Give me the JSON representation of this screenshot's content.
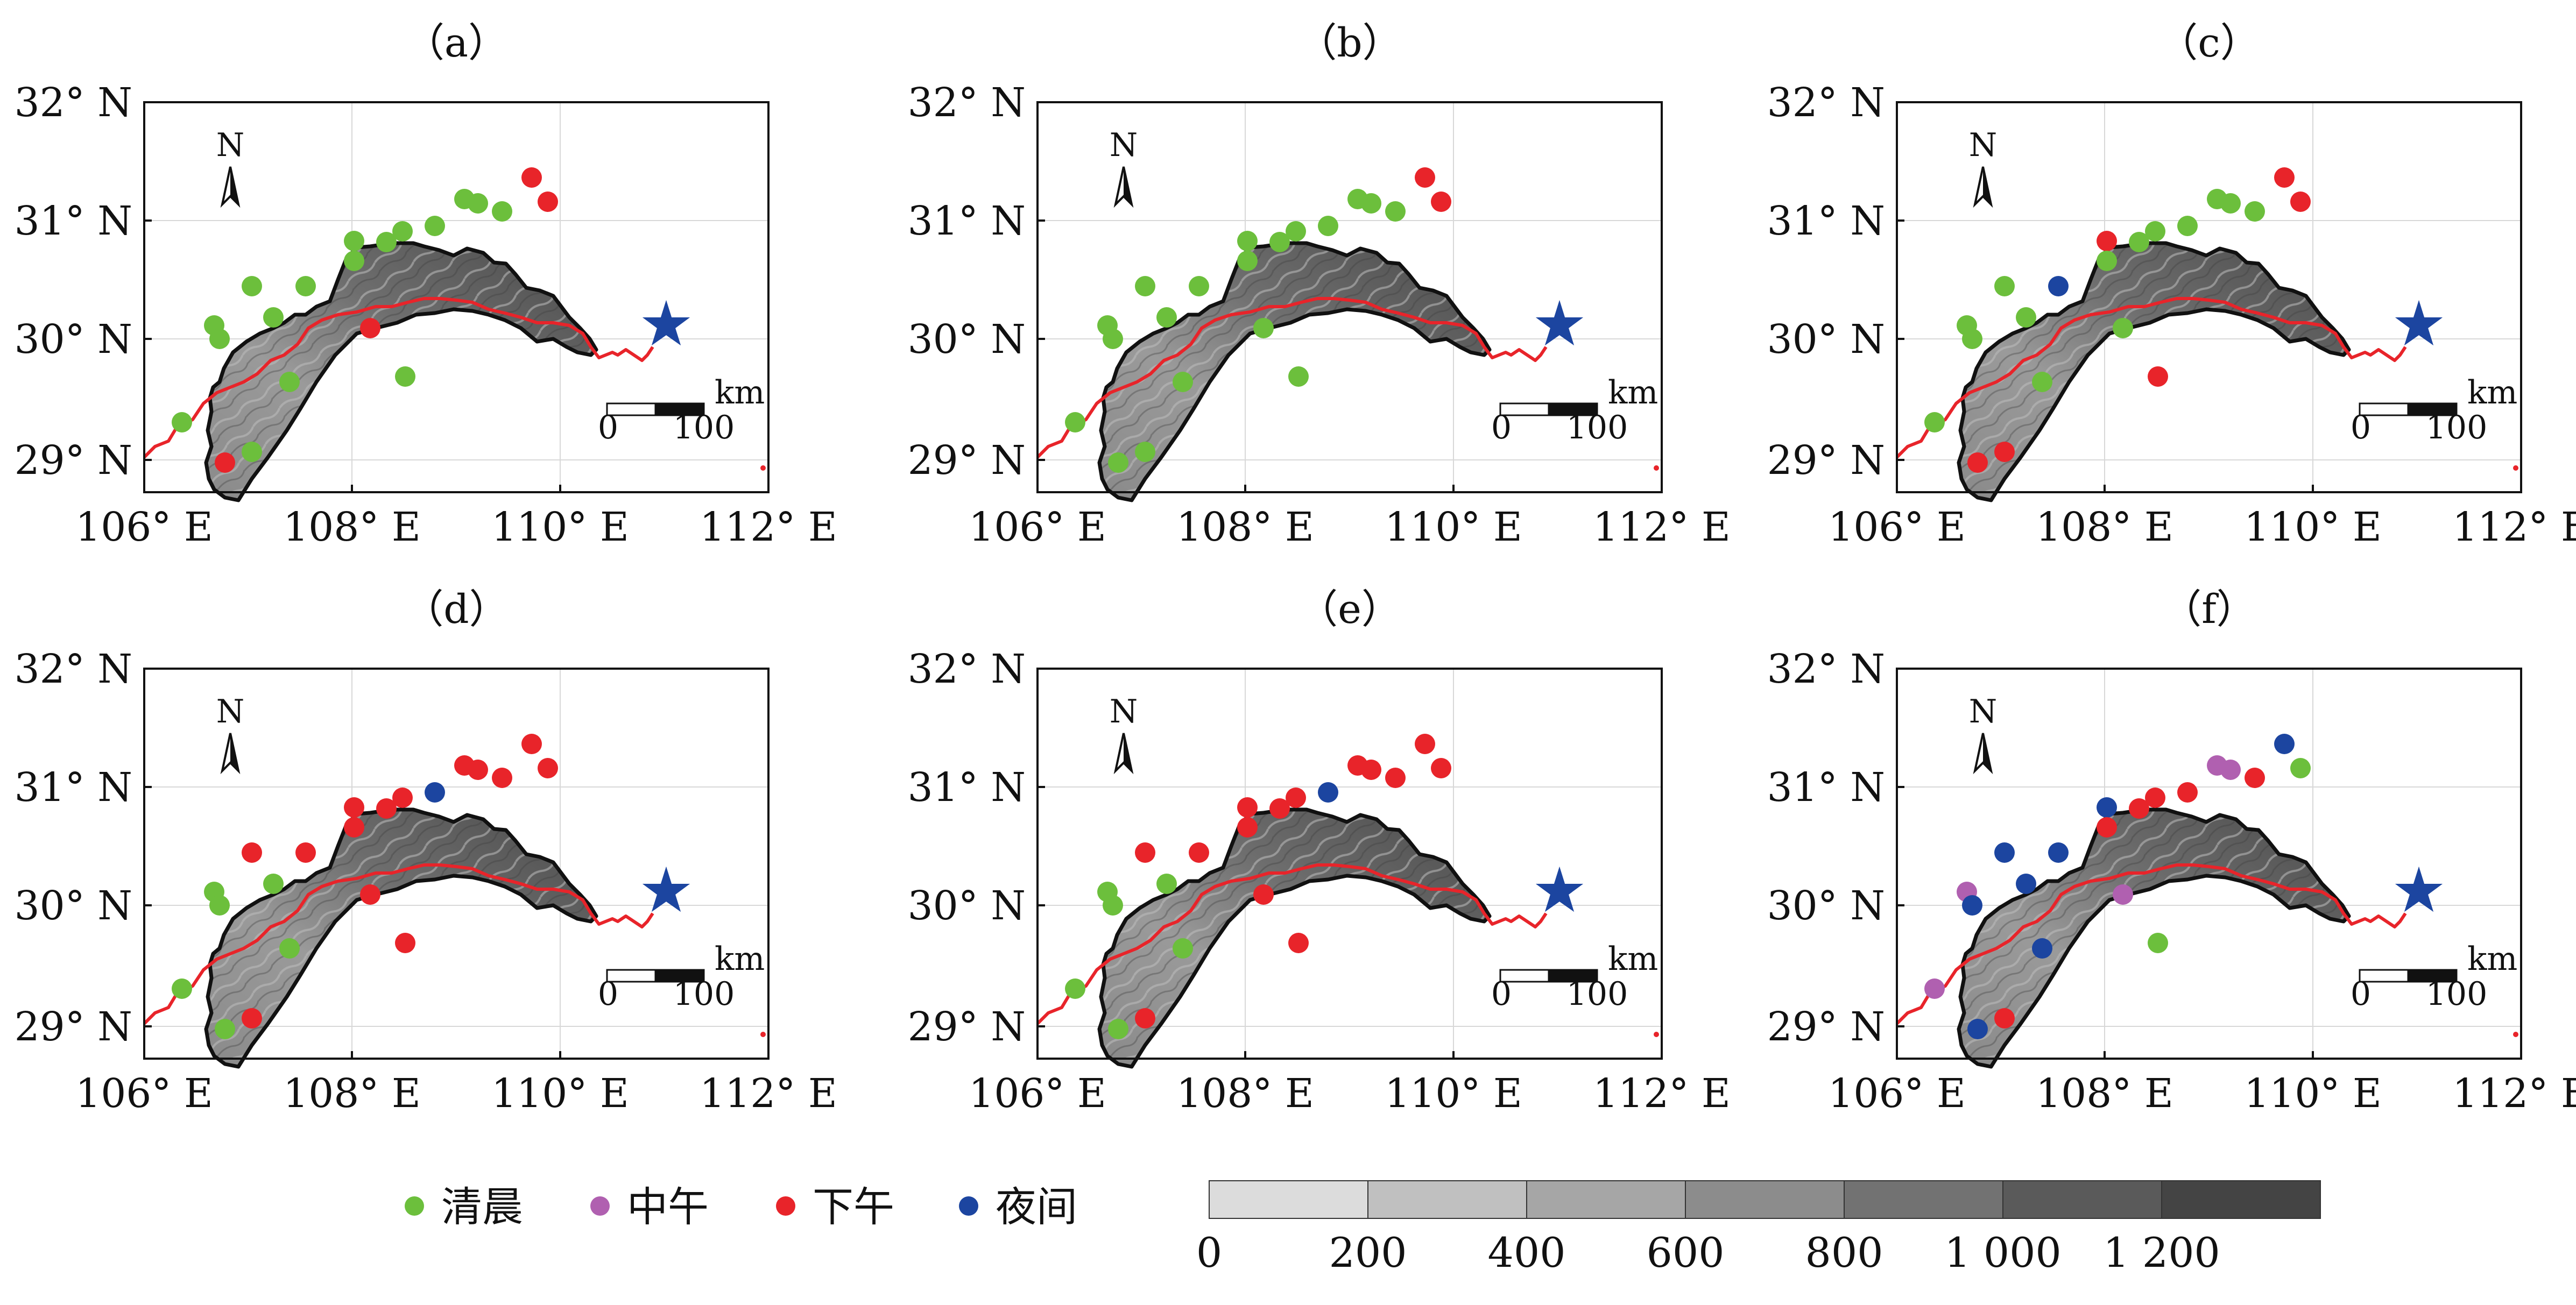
{
  "panel_labels": [
    "（a）",
    "（b）",
    "（c）",
    "（d）",
    "（e）",
    "（f）"
  ],
  "lat_ticks": [
    "32° N",
    "31° N",
    "30° N",
    "29° N"
  ],
  "lon_ticks": [
    "106° E",
    "108° E",
    "110° E",
    "112° E"
  ],
  "north_label": "N",
  "scale_bar": {
    "unit": "km",
    "start": "0",
    "end": "100"
  },
  "legend": {
    "items": [
      {
        "label": "清晨",
        "color": "#6cbf3c"
      },
      {
        "label": "中午",
        "color": "#b060b0"
      },
      {
        "label": "下午",
        "color": "#e8242a"
      },
      {
        "label": "夜间",
        "color": "#1c45a0"
      }
    ]
  },
  "elevation_bar": {
    "labels": [
      "0",
      "200",
      "400",
      "600",
      "800",
      "1 000",
      "1 200"
    ],
    "colors": [
      "#dcdcdc",
      "#c0c0c0",
      "#a6a6a6",
      "#8c8c8c",
      "#727272",
      "#5a5a5a",
      "#444444"
    ]
  },
  "colors": {
    "river": "#e8242a",
    "star": "#1c45a0",
    "border": "#111111"
  }
}
